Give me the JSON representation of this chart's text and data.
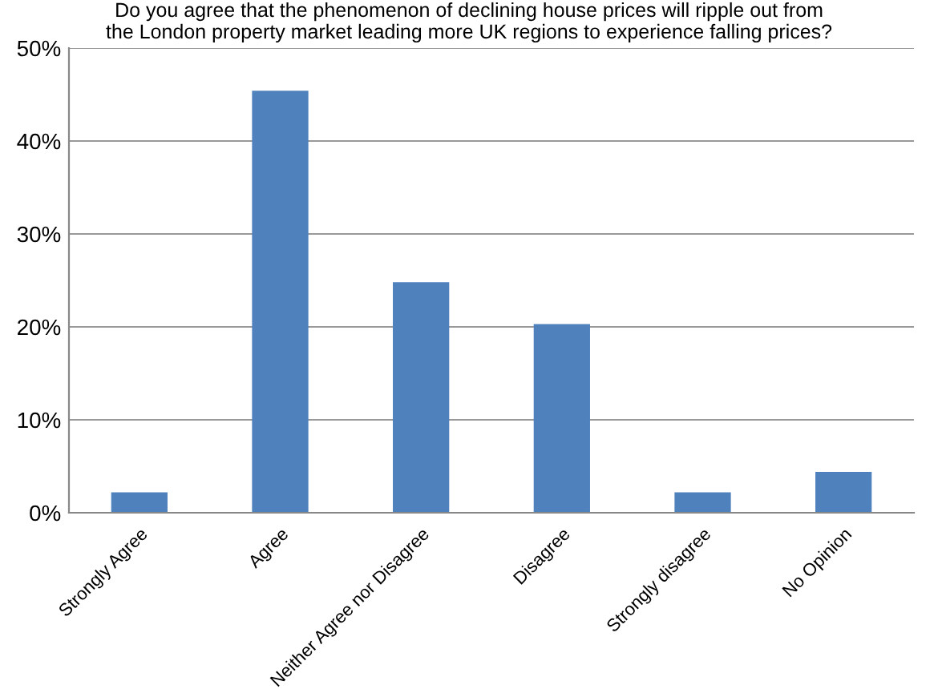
{
  "chart_data": {
    "type": "bar",
    "title": "Do you agree that the phenomenon of declining house prices will ripple out from\nthe London property market leading more UK regions to experience falling prices?",
    "categories": [
      "Strongly Agree",
      "Agree",
      "Neither Agree nor Disagree",
      "Disagree",
      "Strongly disagree",
      "No Opinion"
    ],
    "values": [
      2.2,
      45.4,
      24.8,
      20.3,
      2.2,
      4.4
    ],
    "color": "#4f81bd",
    "ylim": [
      0,
      50
    ],
    "yticks": [
      {
        "value": 0,
        "label": "0%"
      },
      {
        "value": 10,
        "label": "10%"
      },
      {
        "value": 20,
        "label": "20%"
      },
      {
        "value": 30,
        "label": "30%"
      },
      {
        "value": 40,
        "label": "40%"
      },
      {
        "value": 50,
        "label": "50%"
      }
    ],
    "grid": "y"
  }
}
